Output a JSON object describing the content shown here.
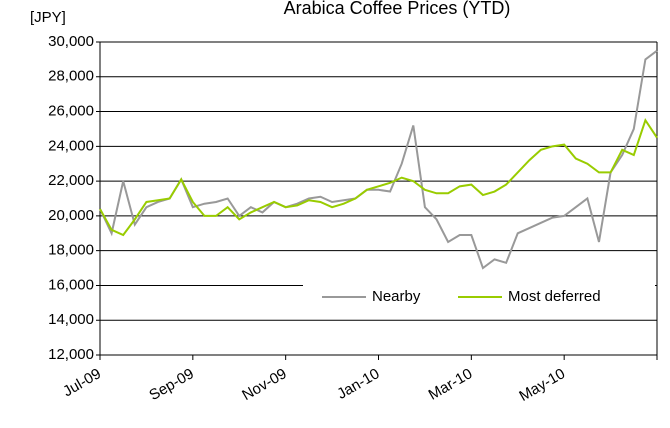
{
  "chart_data": {
    "type": "line",
    "title": "Arabica Coffee Prices (YTD)",
    "y_label": "[JPY]",
    "categories": [
      "Jul-09",
      null,
      null,
      null,
      null,
      null,
      null,
      null,
      "Sep-09",
      null,
      null,
      null,
      null,
      null,
      null,
      null,
      "Nov-09",
      null,
      null,
      null,
      null,
      null,
      null,
      null,
      "Jan-10",
      null,
      null,
      null,
      null,
      null,
      null,
      null,
      "Mar-10",
      null,
      null,
      null,
      null,
      null,
      null,
      null,
      "May-10",
      null,
      null,
      null,
      null,
      null,
      null,
      null,
      null
    ],
    "series": [
      {
        "name": "Nearby",
        "color": "#999999",
        "values": [
          20400,
          19000,
          22000,
          19500,
          20500,
          20800,
          21000,
          22100,
          20500,
          20700,
          20800,
          21000,
          20000,
          20500,
          20200,
          20800,
          20500,
          20700,
          21000,
          21100,
          20800,
          20900,
          21000,
          21500,
          21500,
          21400,
          23000,
          25200,
          20500,
          19800,
          18500,
          18900,
          18900,
          17000,
          17500,
          17300,
          19000,
          19300,
          19600,
          19900,
          20000,
          20500,
          21000,
          18500,
          22500,
          23500,
          25000,
          29000,
          29500
        ]
      },
      {
        "name": "Most deferred",
        "color": "#99cc00",
        "values": [
          20400,
          19200,
          18900,
          19800,
          20800,
          20900,
          21000,
          22100,
          20800,
          20000,
          20000,
          20500,
          19800,
          20200,
          20500,
          20800,
          20500,
          20600,
          20900,
          20800,
          20500,
          20700,
          21000,
          21500,
          21700,
          21900,
          22200,
          22000,
          21500,
          21300,
          21300,
          21700,
          21800,
          21200,
          21400,
          21800,
          22500,
          23200,
          23800,
          24000,
          24100,
          23300,
          23000,
          22500,
          22500,
          23800,
          23500,
          25500,
          24500
        ]
      }
    ],
    "ylim": [
      12000,
      30000
    ],
    "yticks": [
      {
        "value": 12000,
        "label": "12,000"
      },
      {
        "value": 14000,
        "label": "14,000"
      },
      {
        "value": 16000,
        "label": "16,000"
      },
      {
        "value": 18000,
        "label": "18,000"
      },
      {
        "value": 20000,
        "label": "20,000"
      },
      {
        "value": 22000,
        "label": "22,000"
      },
      {
        "value": 24000,
        "label": "24,000"
      },
      {
        "value": 26000,
        "label": "26,000"
      },
      {
        "value": 28000,
        "label": "28,000"
      },
      {
        "value": 30000,
        "label": "30,000"
      }
    ],
    "grid": true,
    "legend": "lower right"
  }
}
